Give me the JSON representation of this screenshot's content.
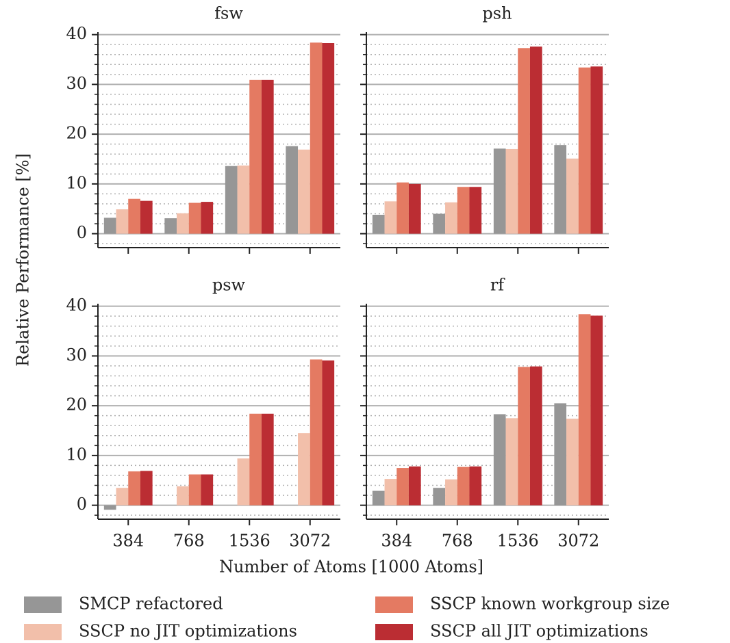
{
  "ylabel": "Relative Performance [%]",
  "xlabel": "Number of Atoms [1000 Atoms]",
  "chart_data": [
    {
      "type": "bar",
      "title": "fsw",
      "categories": [
        "384",
        "768",
        "1536",
        "3072"
      ],
      "series": [
        {
          "name": "SMCP refactored",
          "color": "#969696",
          "values": [
            3.2,
            3.1,
            13.6,
            17.6
          ]
        },
        {
          "name": "SSCP no JIT optimizations",
          "color": "#f2bfaa",
          "values": [
            4.9,
            4.1,
            13.7,
            16.9
          ]
        },
        {
          "name": "SSCP known workgroup size",
          "color": "#e47a62",
          "values": [
            7.0,
            6.2,
            30.9,
            38.4
          ]
        },
        {
          "name": "SSCP all JIT optimizations",
          "color": "#bb2d33",
          "values": [
            6.6,
            6.4,
            30.9,
            38.3
          ]
        }
      ],
      "ylim": [
        -2.8,
        40.5
      ],
      "yticks": [
        0,
        10,
        20,
        30,
        40
      ],
      "yminorticks": [
        -2,
        2,
        4,
        6,
        8,
        12,
        14,
        16,
        18,
        22,
        24,
        26,
        28,
        32,
        34,
        36,
        38
      ],
      "grid": true,
      "ytick_labels": true,
      "xtick_labels": false
    },
    {
      "type": "bar",
      "title": "psh",
      "categories": [
        "384",
        "768",
        "1536",
        "3072"
      ],
      "series": [
        {
          "name": "SMCP refactored",
          "color": "#969696",
          "values": [
            3.8,
            4.0,
            17.1,
            17.8
          ]
        },
        {
          "name": "SSCP no JIT optimizations",
          "color": "#f2bfaa",
          "values": [
            6.5,
            6.3,
            17.0,
            15.1
          ]
        },
        {
          "name": "SSCP known workgroup size",
          "color": "#e47a62",
          "values": [
            10.3,
            9.4,
            37.3,
            33.4
          ]
        },
        {
          "name": "SSCP all JIT optimizations",
          "color": "#bb2d33",
          "values": [
            10.0,
            9.4,
            37.6,
            33.6
          ]
        }
      ],
      "ylim": [
        -2.8,
        40.5
      ],
      "yticks": [
        0,
        10,
        20,
        30,
        40
      ],
      "yminorticks": [
        -2,
        2,
        4,
        6,
        8,
        12,
        14,
        16,
        18,
        22,
        24,
        26,
        28,
        32,
        34,
        36,
        38
      ],
      "grid": true,
      "ytick_labels": false,
      "xtick_labels": false
    },
    {
      "type": "bar",
      "title": "psw",
      "categories": [
        "384",
        "768",
        "1536",
        "3072"
      ],
      "series": [
        {
          "name": "SMCP refactored",
          "color": "#969696",
          "values": [
            -0.9,
            0,
            0,
            0
          ]
        },
        {
          "name": "SSCP no JIT optimizations",
          "color": "#f2bfaa",
          "values": [
            3.5,
            3.8,
            9.4,
            14.5
          ]
        },
        {
          "name": "SSCP known workgroup size",
          "color": "#e47a62",
          "values": [
            6.8,
            6.2,
            18.4,
            29.3
          ]
        },
        {
          "name": "SSCP all JIT optimizations",
          "color": "#bb2d33",
          "values": [
            6.9,
            6.2,
            18.4,
            29.1
          ]
        }
      ],
      "ylim": [
        -2.8,
        40.5
      ],
      "yticks": [
        0,
        10,
        20,
        30,
        40
      ],
      "yminorticks": [
        -2,
        2,
        4,
        6,
        8,
        12,
        14,
        16,
        18,
        22,
        24,
        26,
        28,
        32,
        34,
        36,
        38
      ],
      "grid": true,
      "ytick_labels": true,
      "xtick_labels": true
    },
    {
      "type": "bar",
      "title": "rf",
      "categories": [
        "384",
        "768",
        "1536",
        "3072"
      ],
      "series": [
        {
          "name": "SMCP refactored",
          "color": "#969696",
          "values": [
            2.9,
            3.5,
            18.3,
            20.5
          ]
        },
        {
          "name": "SSCP no JIT optimizations",
          "color": "#f2bfaa",
          "values": [
            5.3,
            5.2,
            17.5,
            17.4
          ]
        },
        {
          "name": "SSCP known workgroup size",
          "color": "#e47a62",
          "values": [
            7.5,
            7.7,
            27.8,
            38.4
          ]
        },
        {
          "name": "SSCP all JIT optimizations",
          "color": "#bb2d33",
          "values": [
            7.8,
            7.8,
            27.9,
            38.1
          ]
        }
      ],
      "ylim": [
        -2.8,
        40.5
      ],
      "yticks": [
        0,
        10,
        20,
        30,
        40
      ],
      "yminorticks": [
        -2,
        2,
        4,
        6,
        8,
        12,
        14,
        16,
        18,
        22,
        24,
        26,
        28,
        32,
        34,
        36,
        38
      ],
      "grid": true,
      "ytick_labels": false,
      "xtick_labels": true
    }
  ]
}
